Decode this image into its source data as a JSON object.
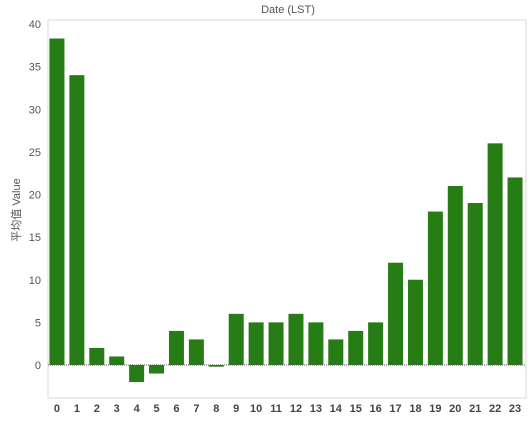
{
  "chart_data": {
    "type": "bar",
    "title": "Date (LST)",
    "xlabel": "",
    "ylabel": "平均值 Value",
    "categories": [
      "0",
      "1",
      "2",
      "3",
      "4",
      "5",
      "6",
      "7",
      "8",
      "9",
      "10",
      "11",
      "12",
      "13",
      "14",
      "15",
      "16",
      "17",
      "18",
      "19",
      "20",
      "21",
      "22",
      "23"
    ],
    "values": [
      38.3,
      34,
      2,
      1,
      -2,
      -1,
      4,
      3,
      -0.2,
      6,
      5,
      5,
      6,
      5,
      3,
      4,
      5,
      12,
      10,
      18,
      21,
      19,
      26,
      22
    ],
    "ylim": [
      -4,
      40
    ],
    "yticks": [
      0,
      5,
      10,
      15,
      20,
      25,
      30,
      35,
      40
    ],
    "grid": false,
    "colors": {
      "bar": "#267c15",
      "zero_line": "#555555",
      "frame": "#d9d9d9"
    }
  }
}
